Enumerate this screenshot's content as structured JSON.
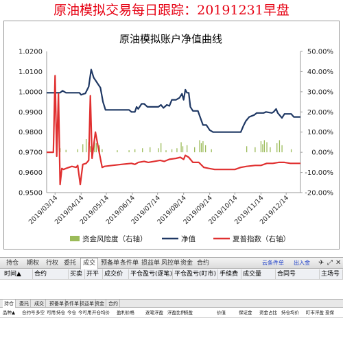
{
  "banner": {
    "title": "原油模拟交易每日跟踪：20191231早盘"
  },
  "chart_data": {
    "type": "line",
    "title": "原油模拟账户净值曲线",
    "left_axis": {
      "min": 0.95,
      "max": 1.02,
      "ticks": [
        "1.0200",
        "1.0100",
        "1.0000",
        "0.9900",
        "0.9800",
        "0.9700",
        "0.9600",
        "0.9500"
      ]
    },
    "right_axis": {
      "min": -20,
      "max": 50,
      "ticks": [
        "50.00%",
        "40.00%",
        "30.00%",
        "20.00%",
        "10.00%",
        "0.00%",
        "-10.00%",
        "-20.00%"
      ]
    },
    "x_range": [
      "2019-03-04",
      "2019-12-31"
    ],
    "x_ticks": [
      "2019/03/14",
      "2019/04/14",
      "2019/05/14",
      "2019/06/14",
      "2019/07/14",
      "2019/08/14",
      "2019/09/14",
      "2019/10/14",
      "2019/11/14",
      "2019/12/14"
    ],
    "grid": false,
    "legend_position": "bottom",
    "series": [
      {
        "name": "资金风险度（右轴）",
        "axis": "right",
        "kind": "bar",
        "color": "#9bbb59",
        "points": [
          [
            "2019-03-20",
            2.0
          ],
          [
            "2019-03-27",
            1.2
          ],
          [
            "2019-04-10",
            1.5
          ],
          [
            "2019-04-16",
            4.0
          ],
          [
            "2019-04-20",
            6.5
          ],
          [
            "2019-04-23",
            5.0
          ],
          [
            "2019-04-25",
            3.0
          ],
          [
            "2019-04-30",
            7.5
          ],
          [
            "2019-05-02",
            4.5
          ],
          [
            "2019-05-06",
            3.5
          ],
          [
            "2019-05-09",
            1.5
          ],
          [
            "2019-05-27",
            1.0
          ],
          [
            "2019-06-10",
            1.0
          ],
          [
            "2019-06-17",
            1.5
          ],
          [
            "2019-06-26",
            2.0
          ],
          [
            "2019-07-05",
            2.5
          ],
          [
            "2019-07-15",
            2.0
          ],
          [
            "2019-07-18",
            4.5
          ],
          [
            "2019-07-24",
            1.0
          ],
          [
            "2019-07-31",
            1.5
          ],
          [
            "2019-08-06",
            2.0
          ],
          [
            "2019-08-11",
            5.0
          ],
          [
            "2019-08-13",
            3.0
          ],
          [
            "2019-08-18",
            3.5
          ],
          [
            "2019-08-27",
            2.5
          ],
          [
            "2019-09-02",
            6.0
          ],
          [
            "2019-09-04",
            4.5
          ],
          [
            "2019-09-06",
            5.5
          ],
          [
            "2019-09-09",
            3.5
          ],
          [
            "2019-09-16",
            1.5
          ],
          [
            "2019-10-28",
            3.0
          ],
          [
            "2019-11-07",
            2.5
          ],
          [
            "2019-11-14",
            5.5
          ],
          [
            "2019-11-16",
            4.0
          ],
          [
            "2019-11-18",
            6.0
          ],
          [
            "2019-11-21",
            5.0
          ],
          [
            "2019-11-25",
            2.5
          ],
          [
            "2019-12-03",
            4.5
          ],
          [
            "2019-12-06",
            6.0
          ],
          [
            "2019-12-09",
            3.5
          ],
          [
            "2019-12-20",
            1.5
          ]
        ]
      },
      {
        "name": "净值",
        "axis": "left",
        "kind": "line",
        "color": "#1f3864",
        "points": [
          [
            "2019-03-04",
            0.9995
          ],
          [
            "2019-03-14",
            0.9995
          ],
          [
            "2019-03-20",
            0.9995
          ],
          [
            "2019-03-23",
            1.0005
          ],
          [
            "2019-03-27",
            0.9995
          ],
          [
            "2019-04-05",
            0.9995
          ],
          [
            "2019-04-12",
            0.9995
          ],
          [
            "2019-04-14",
            0.9985
          ],
          [
            "2019-04-19",
            0.9992
          ],
          [
            "2019-04-23",
            1.0025
          ],
          [
            "2019-04-26",
            1.011
          ],
          [
            "2019-04-29",
            1.007
          ],
          [
            "2019-05-03",
            1.0045
          ],
          [
            "2019-05-07",
            1.002
          ],
          [
            "2019-05-10",
            0.995
          ],
          [
            "2019-05-13",
            0.991
          ],
          [
            "2019-05-18",
            0.991
          ],
          [
            "2019-06-10",
            0.991
          ],
          [
            "2019-06-13",
            0.99
          ],
          [
            "2019-06-17",
            0.99
          ],
          [
            "2019-06-19",
            0.9925
          ],
          [
            "2019-06-21",
            0.9915
          ],
          [
            "2019-06-25",
            0.994
          ],
          [
            "2019-06-28",
            0.994
          ],
          [
            "2019-07-02",
            0.9925
          ],
          [
            "2019-07-15",
            0.9925
          ],
          [
            "2019-07-18",
            0.9935
          ],
          [
            "2019-07-21",
            0.992
          ],
          [
            "2019-07-25",
            0.9935
          ],
          [
            "2019-07-28",
            0.993
          ],
          [
            "2019-07-31",
            0.996
          ],
          [
            "2019-08-05",
            0.996
          ],
          [
            "2019-08-09",
            0.997
          ],
          [
            "2019-08-12",
            0.999
          ],
          [
            "2019-08-14",
            0.996
          ],
          [
            "2019-08-16",
            1.001
          ],
          [
            "2019-08-18",
            0.9995
          ],
          [
            "2019-08-20",
            0.9995
          ],
          [
            "2019-08-22",
            0.9925
          ],
          [
            "2019-08-25",
            0.9905
          ],
          [
            "2019-08-31",
            0.9905
          ],
          [
            "2019-09-03",
            0.987
          ],
          [
            "2019-09-06",
            0.9835
          ],
          [
            "2019-09-10",
            0.9835
          ],
          [
            "2019-09-14",
            0.981
          ],
          [
            "2019-09-18",
            0.98
          ],
          [
            "2019-10-14",
            0.98
          ],
          [
            "2019-10-21",
            0.98
          ],
          [
            "2019-10-24",
            0.983
          ],
          [
            "2019-10-27",
            0.9855
          ],
          [
            "2019-10-31",
            0.9875
          ],
          [
            "2019-11-03",
            0.988
          ],
          [
            "2019-11-06",
            0.9885
          ],
          [
            "2019-11-09",
            0.9895
          ],
          [
            "2019-11-17",
            0.9895
          ],
          [
            "2019-11-20",
            0.99
          ],
          [
            "2019-11-27",
            0.9895
          ],
          [
            "2019-11-29",
            0.99
          ],
          [
            "2019-12-02",
            0.9915
          ],
          [
            "2019-12-04",
            0.9895
          ],
          [
            "2019-12-07",
            0.988
          ],
          [
            "2019-12-09",
            0.987
          ],
          [
            "2019-12-12",
            0.989
          ],
          [
            "2019-12-20",
            0.989
          ],
          [
            "2019-12-23",
            0.9875
          ],
          [
            "2019-12-31",
            0.9875
          ]
        ]
      },
      {
        "name": "夏普指数（右轴）",
        "axis": "right",
        "kind": "line",
        "color": "#e03030",
        "points": [
          [
            "2019-03-04",
            0.0
          ],
          [
            "2019-03-12",
            0.0
          ],
          [
            "2019-03-14",
            38.0
          ],
          [
            "2019-03-16",
            -2.0
          ],
          [
            "2019-03-18",
            29.0
          ],
          [
            "2019-03-20",
            -16.0
          ],
          [
            "2019-03-22",
            -8.0
          ],
          [
            "2019-03-24",
            -8.5
          ],
          [
            "2019-03-27",
            -8.0
          ],
          [
            "2019-04-03",
            -7.0
          ],
          [
            "2019-04-08",
            -7.5
          ],
          [
            "2019-04-10",
            -6.5
          ],
          [
            "2019-04-13",
            -16.0
          ],
          [
            "2019-04-16",
            -6.0
          ],
          [
            "2019-04-20",
            -5.5
          ],
          [
            "2019-04-23",
            -4.0
          ],
          [
            "2019-04-25",
            28.0
          ],
          [
            "2019-04-27",
            -3.0
          ],
          [
            "2019-05-01",
            10.0
          ],
          [
            "2019-05-05",
            1.0
          ],
          [
            "2019-05-09",
            -7.5
          ],
          [
            "2019-05-12",
            -7.0
          ],
          [
            "2019-05-21",
            -6.5
          ],
          [
            "2019-06-01",
            -6.0
          ],
          [
            "2019-06-13",
            -5.5
          ],
          [
            "2019-06-17",
            -6.0
          ],
          [
            "2019-06-21",
            -5.0
          ],
          [
            "2019-06-28",
            -4.5
          ],
          [
            "2019-07-03",
            -5.0
          ],
          [
            "2019-07-17",
            -4.0
          ],
          [
            "2019-07-22",
            -4.5
          ],
          [
            "2019-07-28",
            -3.5
          ],
          [
            "2019-08-05",
            -3.0
          ],
          [
            "2019-08-10",
            -2.5
          ],
          [
            "2019-08-14",
            -3.5
          ],
          [
            "2019-08-16",
            -1.5
          ],
          [
            "2019-08-20",
            -2.5
          ],
          [
            "2019-08-25",
            -5.0
          ],
          [
            "2019-09-01",
            -5.0
          ],
          [
            "2019-09-07",
            -7.5
          ],
          [
            "2019-09-13",
            -8.0
          ],
          [
            "2019-09-20",
            -8.5
          ],
          [
            "2019-10-14",
            -8.5
          ],
          [
            "2019-10-21",
            -7.5
          ],
          [
            "2019-10-28",
            -7.0
          ],
          [
            "2019-11-07",
            -6.5
          ],
          [
            "2019-11-14",
            -6.5
          ],
          [
            "2019-11-21",
            -5.5
          ],
          [
            "2019-11-28",
            -5.5
          ],
          [
            "2019-12-05",
            -5.0
          ],
          [
            "2019-12-12",
            -5.0
          ],
          [
            "2019-12-19",
            -5.5
          ],
          [
            "2019-12-31",
            -5.5
          ]
        ]
      }
    ]
  },
  "trade_panel": {
    "tabs": [
      "持仓",
      "期权",
      "行权",
      "委托",
      "成交",
      "预备单",
      "条件单",
      "损益单",
      "风控单",
      "资金",
      "合约"
    ],
    "active_tab": "成交",
    "right_links": [
      "云条件单",
      "出入金"
    ],
    "icons": [
      "pin-icon",
      "undock-icon",
      "close-icon"
    ],
    "columns": [
      "时间▲",
      "合约",
      "买卖",
      "开平",
      "成交价",
      "平仓盈亏(逐笔)",
      "平仓盈亏(盯市)",
      "手续费",
      "成交量",
      "合同号",
      "主场号"
    ],
    "sub_tabs": [
      "持仓",
      "委托",
      "成交",
      "预备单",
      "条件单",
      "损益单",
      "资金",
      "合约"
    ],
    "sub_columns": [
      "品种▲",
      "合约号",
      "多空",
      "可用",
      "持仓",
      "今仓",
      "今可用",
      "开仓均价",
      "盈利价格",
      "逐笔浮盈",
      "浮盈比例",
      "损盈",
      "价值",
      "保证金",
      "资金占比",
      "持仓均价",
      "盯市浮盈",
      "投保"
    ]
  }
}
